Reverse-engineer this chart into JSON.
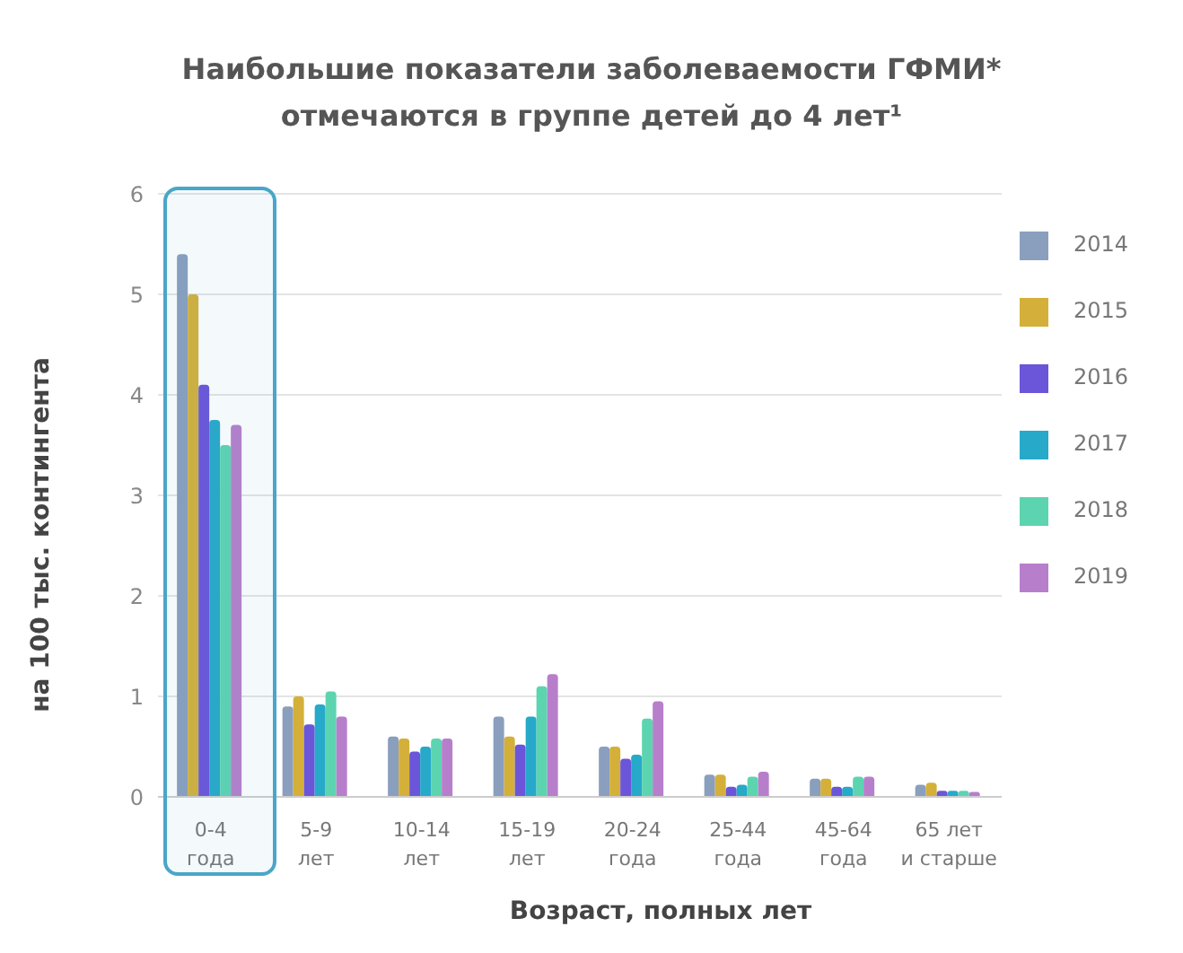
{
  "chart_data": {
    "type": "bar",
    "title": "Наибольшие показатели заболеваемости ГФМИ*\nотмечаются в группе  детей до 4 лет¹",
    "xlabel": "Возраст, полных лет",
    "ylabel": "на 100 тыс. контингента",
    "categories": [
      "0-4 года",
      "5-9 лет",
      "10-14 лет",
      "15-19 лет",
      "20-24 года",
      "25-44 года",
      "45-64 года",
      "65 лет и старше"
    ],
    "bands": [
      {
        "axis": "x",
        "from": "0-4 года",
        "to": "0-4 года",
        "color": "#4aa6c8"
      }
    ],
    "series": [
      {
        "name": "2014",
        "color": "#8a9fbd",
        "values": [
          5.4,
          0.9,
          0.6,
          0.8,
          0.5,
          0.22,
          0.18,
          0.12
        ]
      },
      {
        "name": "2015",
        "color": "#d4b03a",
        "values": [
          5.0,
          1.0,
          0.58,
          0.6,
          0.5,
          0.22,
          0.18,
          0.14
        ]
      },
      {
        "name": "2016",
        "color": "#6b55d9",
        "values": [
          4.1,
          0.72,
          0.45,
          0.52,
          0.38,
          0.1,
          0.1,
          0.06
        ]
      },
      {
        "name": "2017",
        "color": "#27a9c9",
        "values": [
          3.75,
          0.92,
          0.5,
          0.8,
          0.42,
          0.12,
          0.1,
          0.06
        ]
      },
      {
        "name": "2018",
        "color": "#5dd4b0",
        "values": [
          3.5,
          1.05,
          0.58,
          1.1,
          0.78,
          0.2,
          0.2,
          0.06
        ]
      },
      {
        "name": "2019",
        "color": "#b77fcb",
        "values": [
          3.7,
          0.8,
          0.58,
          1.22,
          0.95,
          0.25,
          0.2,
          0.05
        ]
      }
    ],
    "ylim": [
      0,
      6
    ],
    "yticks": [
      0,
      1,
      2,
      3,
      4,
      5,
      6
    ],
    "grid": "y",
    "legend": "top right"
  }
}
